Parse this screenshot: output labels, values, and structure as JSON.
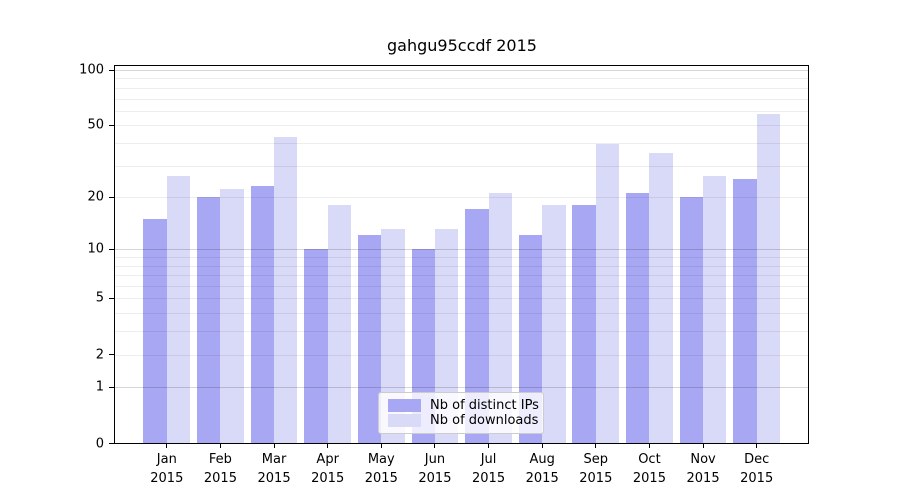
{
  "chart_data": {
    "type": "bar",
    "title": "gahgu95ccdf 2015",
    "categories": [
      "Jan",
      "Feb",
      "Mar",
      "Apr",
      "May",
      "Jun",
      "Jul",
      "Aug",
      "Sep",
      "Oct",
      "Nov",
      "Dec"
    ],
    "year_label": "2015",
    "series": [
      {
        "name": "Nb of distinct IPs",
        "color": "#a7a7f4",
        "values": [
          15,
          20,
          23,
          10,
          12,
          10,
          17,
          12,
          18,
          21,
          20,
          25
        ]
      },
      {
        "name": "Nb of downloads",
        "color": "#d9d9f8",
        "values": [
          26,
          22,
          43,
          18,
          13,
          13,
          21,
          18,
          39,
          35,
          26,
          57
        ]
      }
    ],
    "yscale": "log(1+x)",
    "ylim": [
      0,
      105
    ],
    "y_tick_values": [
      100,
      50,
      20,
      10,
      5,
      2,
      1,
      0
    ],
    "y_tick_labels": [
      "100",
      "50",
      "20",
      "10",
      "5",
      "2",
      "1",
      "0"
    ],
    "minor_gridline_values": [
      2,
      3,
      4,
      5,
      6,
      7,
      8,
      9,
      20,
      30,
      40,
      50,
      60,
      70,
      80,
      90
    ],
    "major_gridline_values": [
      1,
      10,
      100
    ],
    "grid": true,
    "legend_position": "bottom-center",
    "xlabel": "",
    "ylabel": ""
  }
}
